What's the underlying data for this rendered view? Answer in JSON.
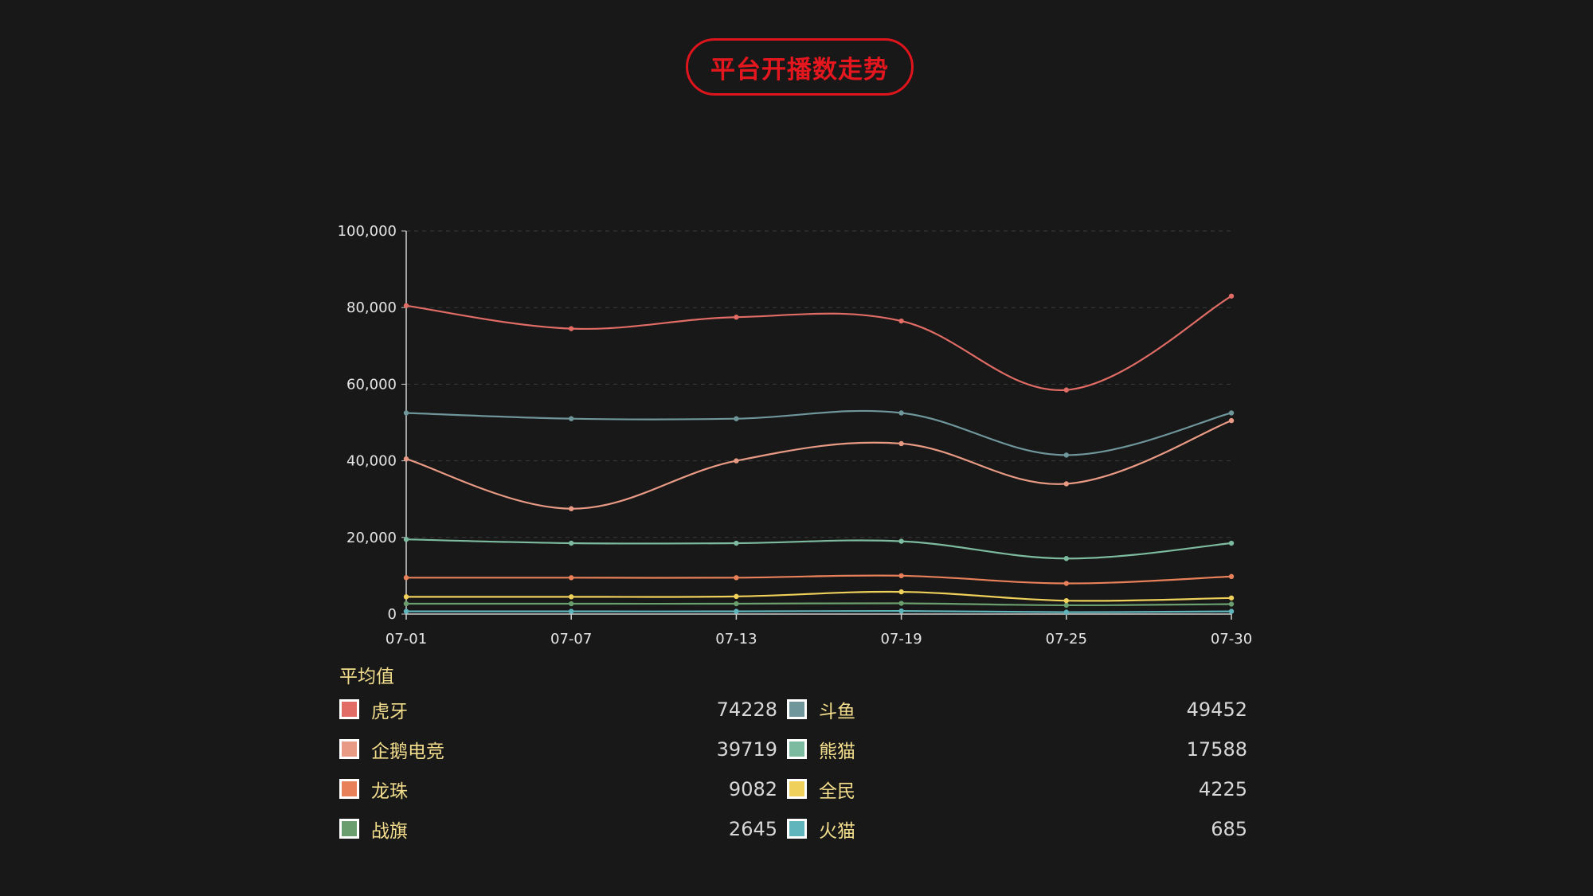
{
  "title": "平台开播数走势",
  "chart_data": {
    "type": "line",
    "x": [
      "07-01",
      "07-07",
      "07-13",
      "07-19",
      "07-25",
      "07-30"
    ],
    "ylim": [
      0,
      100000
    ],
    "yticks": [
      "0",
      "20,000",
      "40,000",
      "60,000",
      "80,000",
      "100,000"
    ],
    "grid": true,
    "series": [
      {
        "name": "虎牙",
        "color": "#e06c65",
        "values": [
          80500,
          74500,
          77500,
          76500,
          58500,
          83000
        ]
      },
      {
        "name": "斗鱼",
        "color": "#6f969a",
        "values": [
          52500,
          51000,
          51000,
          52500,
          41500,
          52500
        ]
      },
      {
        "name": "企鹅电竞",
        "color": "#e89a84",
        "values": [
          40500,
          27500,
          40000,
          44500,
          34000,
          50500
        ]
      },
      {
        "name": "熊猫",
        "color": "#7dbba0",
        "values": [
          19500,
          18500,
          18500,
          19000,
          14500,
          18500
        ]
      },
      {
        "name": "龙珠",
        "color": "#e8805a",
        "values": [
          9500,
          9500,
          9500,
          10000,
          8000,
          9800
        ]
      },
      {
        "name": "全民",
        "color": "#eed05a",
        "values": [
          4500,
          4500,
          4600,
          5800,
          3500,
          4200
        ]
      },
      {
        "name": "战旗",
        "color": "#6a9e6e",
        "values": [
          2700,
          2700,
          2700,
          2800,
          2300,
          2600
        ]
      },
      {
        "name": "火猫",
        "color": "#5fb5bb",
        "values": [
          700,
          700,
          700,
          800,
          500,
          700
        ]
      }
    ]
  },
  "legend": {
    "title": "平均值",
    "items": [
      {
        "name": "虎牙",
        "value": "74228",
        "color": "#e06c65"
      },
      {
        "name": "斗鱼",
        "value": "49452",
        "color": "#6f969a"
      },
      {
        "name": "企鹅电竞",
        "value": "39719",
        "color": "#e89a84"
      },
      {
        "name": "熊猫",
        "value": "17588",
        "color": "#7dbba0"
      },
      {
        "name": "龙珠",
        "value": "9082",
        "color": "#e8805a"
      },
      {
        "name": "全民",
        "value": "4225",
        "color": "#eed05a"
      },
      {
        "name": "战旗",
        "value": "2645",
        "color": "#6a9e6e"
      },
      {
        "name": "火猫",
        "value": "685",
        "color": "#5fb5bb"
      }
    ]
  }
}
